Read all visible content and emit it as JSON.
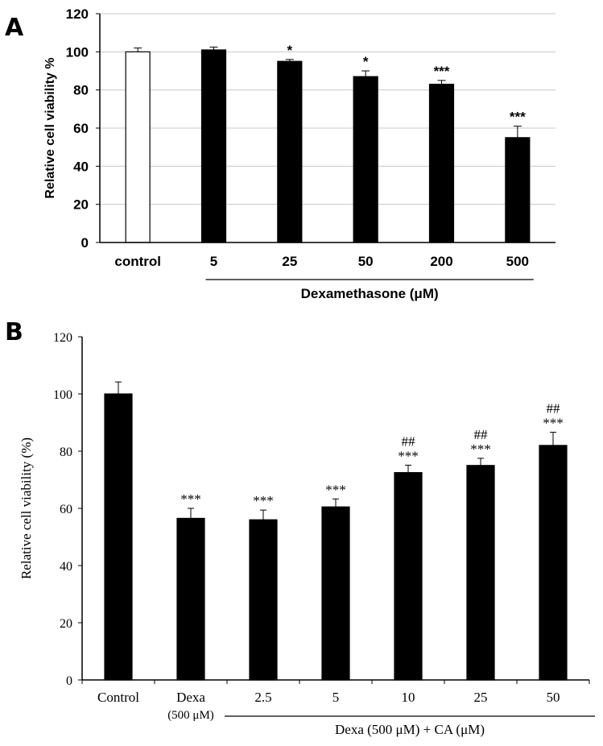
{
  "chart_data": [
    {
      "panel": "A",
      "type": "bar",
      "title": "",
      "ylabel": "Relative cell viability %",
      "xlabel": "Dexamethasone  (μM)",
      "ylim": [
        0,
        120
      ],
      "yticks": [
        "0",
        "20",
        "40",
        "60",
        "80",
        "100",
        "120"
      ],
      "grid": true,
      "categories": [
        "control",
        "5",
        "25",
        "50",
        "200",
        "500"
      ],
      "values": [
        100,
        101,
        95,
        87,
        83,
        55
      ],
      "errors": [
        2,
        1.5,
        1,
        3,
        2,
        6
      ],
      "annotations": [
        "",
        "",
        "*",
        "*",
        "***",
        "***"
      ],
      "bar_fill": [
        "#ffffff",
        "#000000",
        "#000000",
        "#000000",
        "#000000",
        "#000000"
      ],
      "group_bracket": {
        "from": "5",
        "to": "500"
      }
    },
    {
      "panel": "B",
      "type": "bar",
      "title": "",
      "ylabel": "Relative cell viability (%)",
      "xlabel": "Dexa (500 μM) + CA (μM)",
      "ylim": [
        0,
        120
      ],
      "yticks": [
        "0",
        "20",
        "40",
        "60",
        "80",
        "100",
        "120"
      ],
      "grid": false,
      "categories": [
        "Control",
        "Dexa",
        "2.5",
        "5",
        "10",
        "25",
        "50"
      ],
      "category_sublabels": [
        "",
        "(500 μM)",
        "",
        "",
        "",
        "",
        ""
      ],
      "values": [
        100,
        56.5,
        56,
        60.5,
        72.5,
        75,
        82
      ],
      "errors": [
        4.2,
        3.5,
        3.4,
        2.8,
        2.6,
        2.5,
        4.6
      ],
      "annotations_stars": [
        "",
        "***",
        "***",
        "***",
        "***",
        "***",
        "***"
      ],
      "annotations_hash": [
        "",
        "",
        "",
        "",
        "##",
        "##",
        "##"
      ],
      "bar_fill": [
        "#000000",
        "#000000",
        "#000000",
        "#000000",
        "#000000",
        "#000000",
        "#000000"
      ],
      "group_bracket": {
        "from": "2.5",
        "to": "50"
      }
    }
  ],
  "panel_labels": [
    "A",
    "B"
  ]
}
